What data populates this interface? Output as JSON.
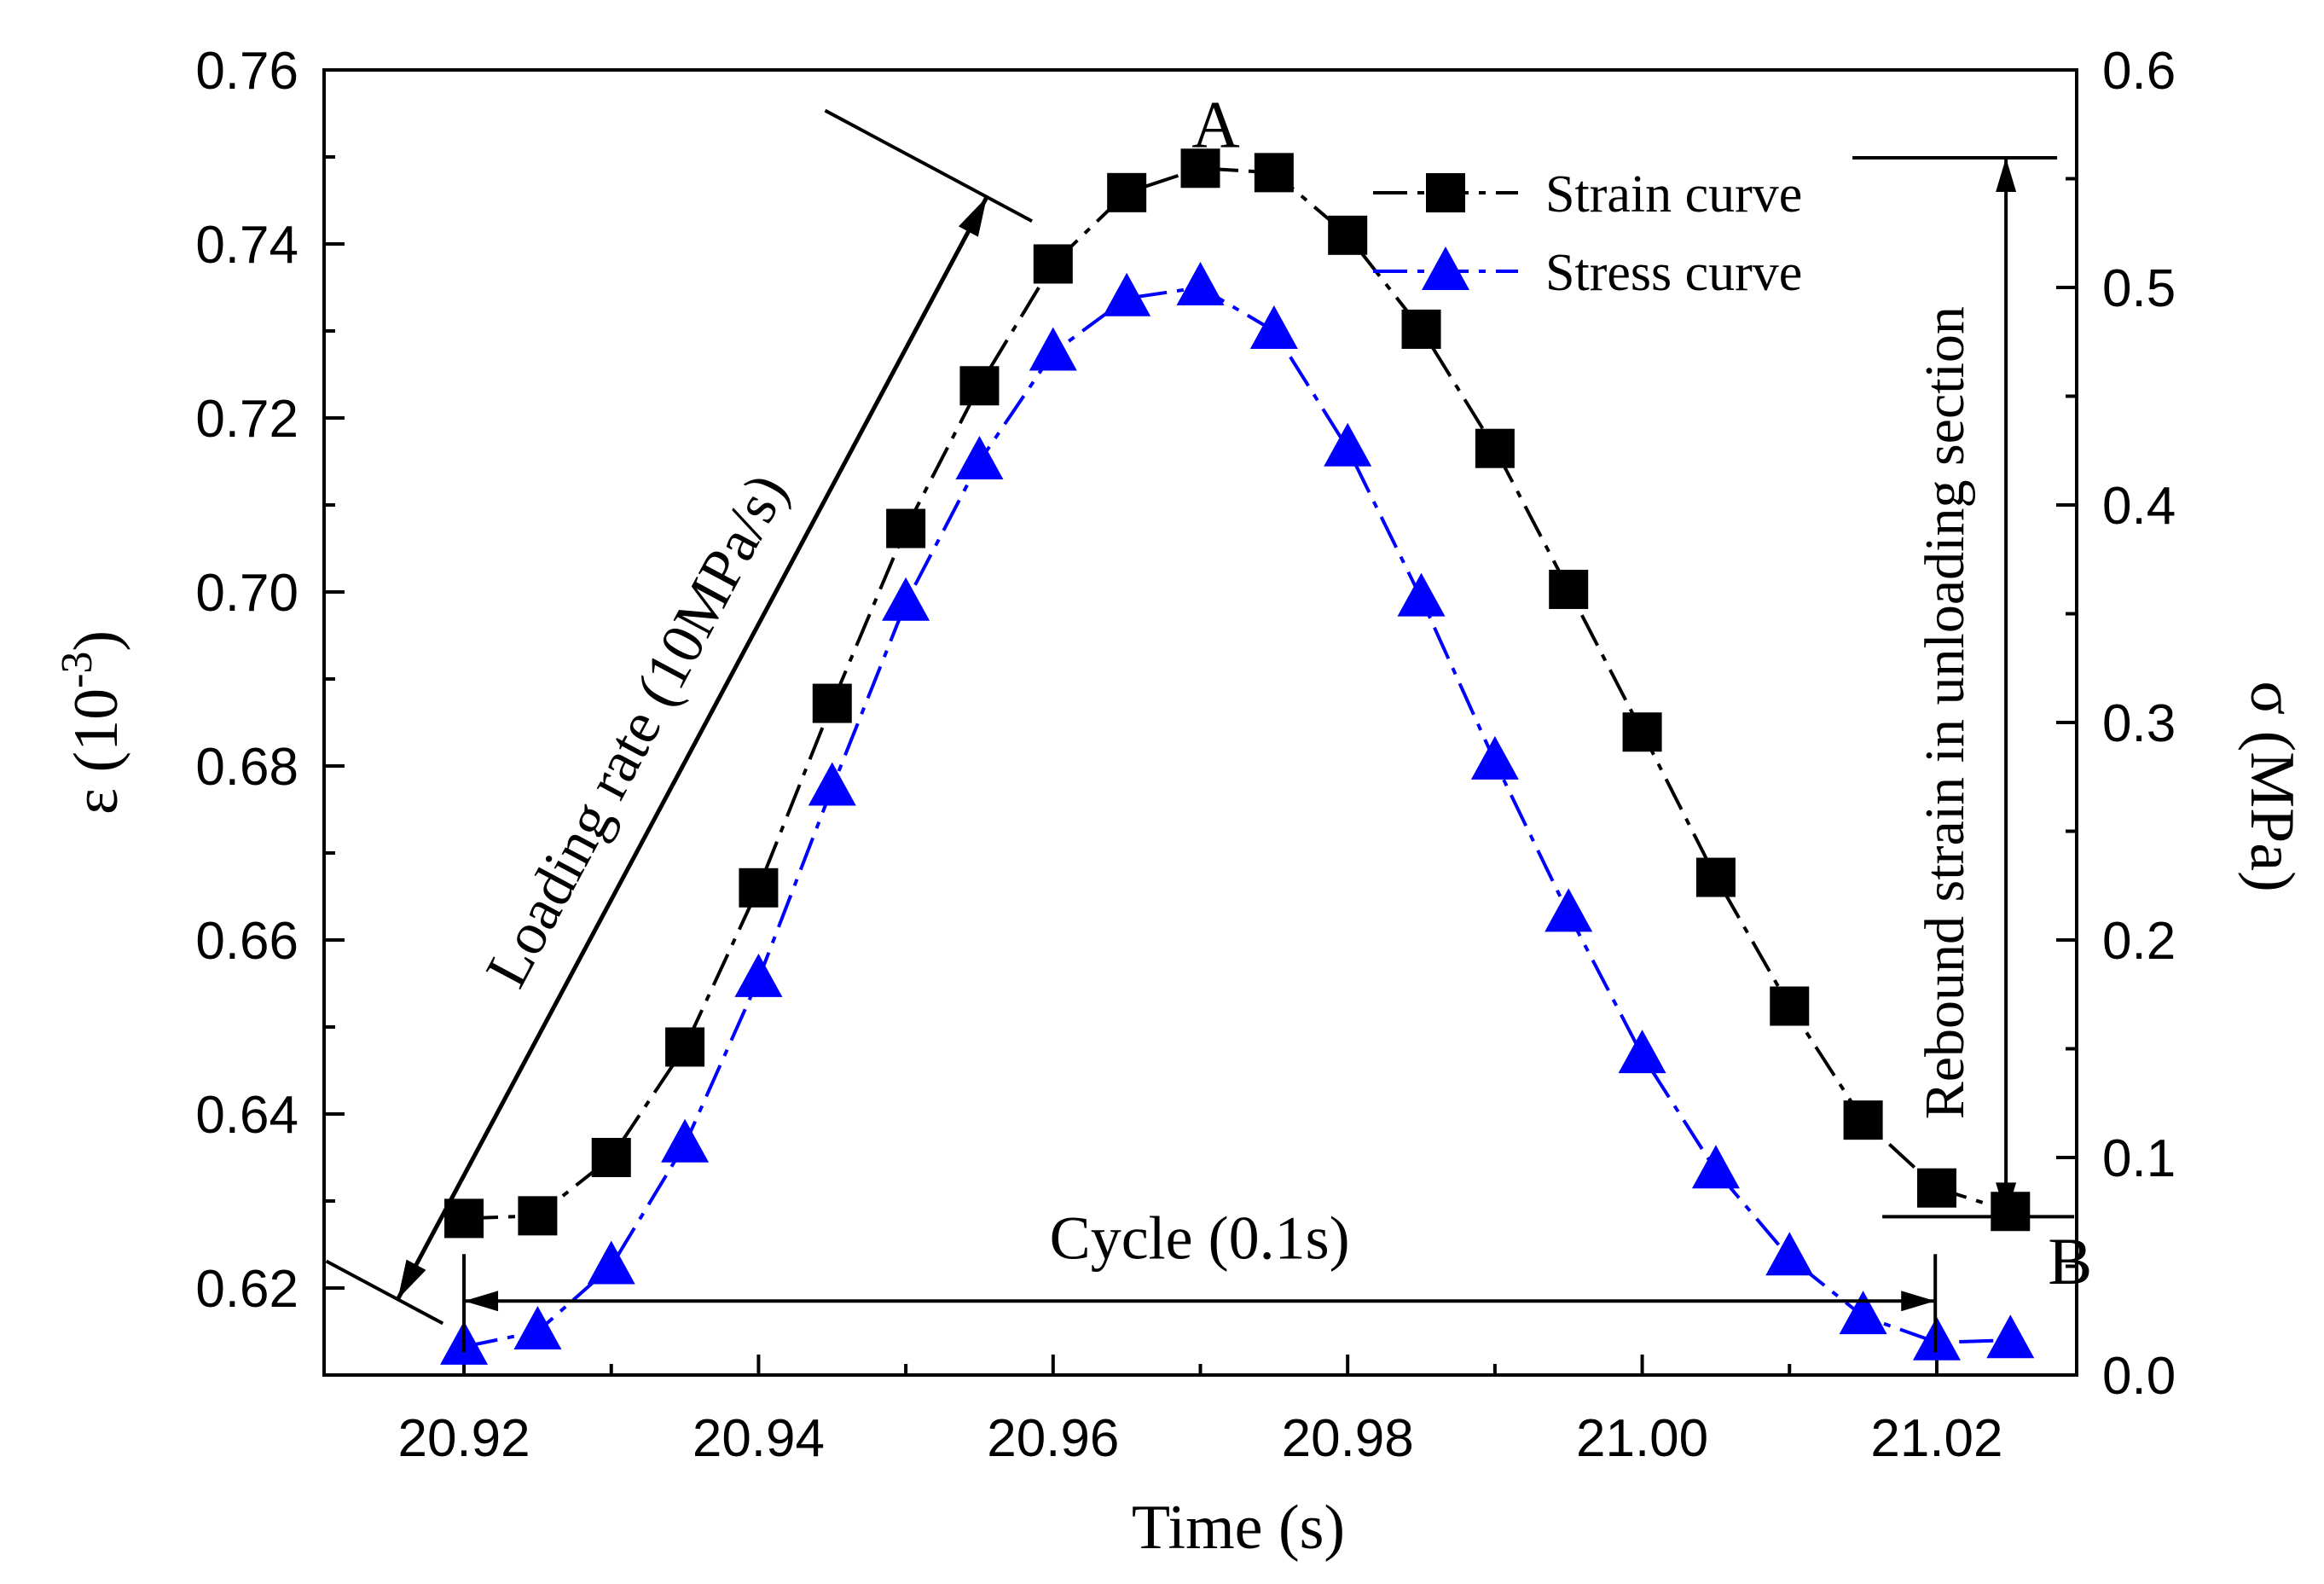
{
  "chart_data": {
    "type": "line",
    "xlabel": "Time (s)",
    "ylabel_left": "ε (10",
    "ylabel_left_exp": "-3",
    "ylabel_left_close": ")",
    "ylabel_right": "σ (MPa)",
    "xlim": [
      20.9105,
      21.0295
    ],
    "ylim_left": [
      0.61,
      0.76
    ],
    "ylim_right": [
      0.0,
      0.6
    ],
    "x_ticks": [
      "20.92",
      "20.94",
      "20.96",
      "20.98",
      "21.00",
      "21.02"
    ],
    "x_tick_values": [
      20.92,
      20.94,
      20.96,
      20.98,
      21.0,
      21.02
    ],
    "y_left_ticks": [
      "0.62",
      "0.64",
      "0.66",
      "0.68",
      "0.70",
      "0.72",
      "0.74",
      "0.76"
    ],
    "y_left_tick_values": [
      0.62,
      0.64,
      0.66,
      0.68,
      0.7,
      0.72,
      0.74,
      0.76
    ],
    "y_right_ticks": [
      "0.0",
      "0.1",
      "0.2",
      "0.3",
      "0.4",
      "0.5",
      "0.6"
    ],
    "y_right_tick_values": [
      0.0,
      0.1,
      0.2,
      0.3,
      0.4,
      0.5,
      0.6
    ],
    "series": [
      {
        "name": "Strain curve",
        "axis": "left",
        "color": "#000000",
        "marker": "square",
        "x": [
          20.92,
          20.925,
          20.93,
          20.935,
          20.94,
          20.945,
          20.95,
          20.955,
          20.96,
          20.965,
          20.97,
          20.975,
          20.98,
          20.985,
          20.99,
          20.995,
          21.0,
          21.005,
          21.01,
          21.015,
          21.02,
          21.025
        ],
        "values": [
          0.628,
          0.6283,
          0.635,
          0.6477,
          0.666,
          0.6872,
          0.7073,
          0.7237,
          0.7377,
          0.7459,
          0.7487,
          0.7482,
          0.741,
          0.7302,
          0.7165,
          0.7003,
          0.6839,
          0.6672,
          0.6524,
          0.6393,
          0.6315,
          0.6288
        ]
      },
      {
        "name": "Stress curve",
        "axis": "right",
        "color": "#0000ff",
        "marker": "triangle",
        "x": [
          20.92,
          20.925,
          20.93,
          20.935,
          20.94,
          20.945,
          20.95,
          20.955,
          20.96,
          20.965,
          20.97,
          20.975,
          20.98,
          20.985,
          20.99,
          20.995,
          21.0,
          21.005,
          21.01,
          21.015,
          21.02,
          21.025
        ],
        "values": [
          0.013,
          0.02,
          0.05,
          0.106,
          0.182,
          0.27,
          0.355,
          0.42,
          0.47,
          0.495,
          0.5,
          0.48,
          0.426,
          0.357,
          0.282,
          0.212,
          0.147,
          0.094,
          0.054,
          0.027,
          0.015,
          0.016
        ]
      }
    ],
    "legend_position": "top-right",
    "annotations": {
      "point_a": "A",
      "point_b": "B",
      "loading_rate": "Loading rate (10MPa/s)",
      "cycle": "Cycle (0.1s)",
      "rebound": "Rebound strain in unloading section"
    },
    "annotation_anchors": {
      "loading_rate_start": [
        20.9155,
        0.6187
      ],
      "loading_rate_end": [
        20.9555,
        0.7454
      ],
      "cycle_start_x": 20.92,
      "cycle_end_x": 21.0199,
      "cycle_y": 0.6185,
      "rebound_x": 21.0247,
      "rebound_top_y": 0.7499,
      "rebound_bottom_y": 0.6282
    }
  }
}
